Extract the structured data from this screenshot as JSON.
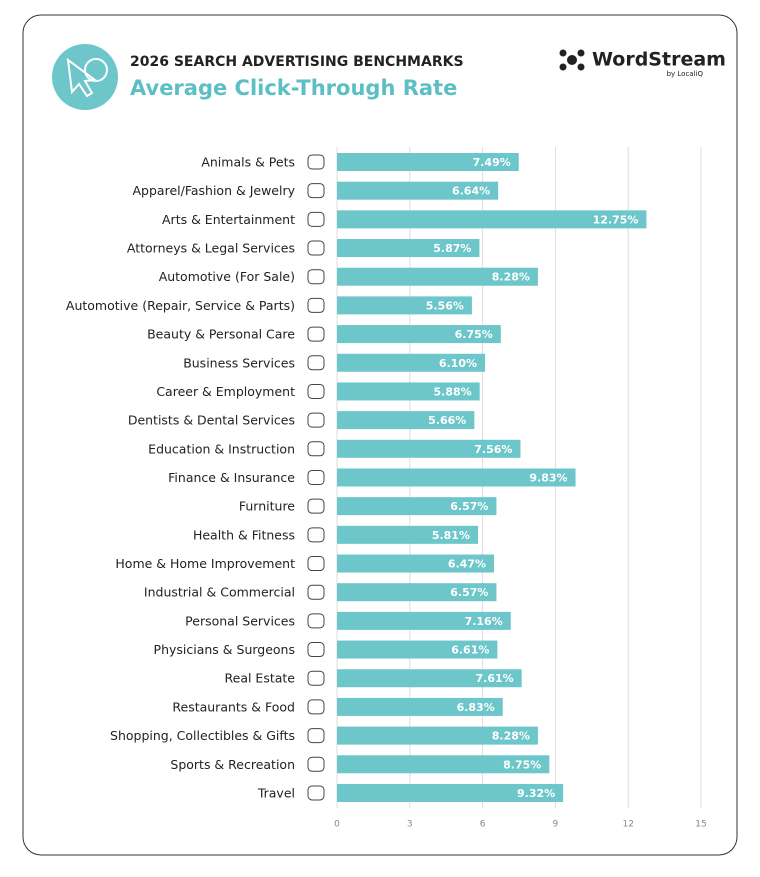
{
  "chart_data": {
    "type": "hbar",
    "supertitle": "2026 SEARCH ADVERTISING BENCHMARKS",
    "title": "Average Click-Through Rate",
    "brand": "WordStream",
    "brand_sub": "by LocaliQ",
    "categories": [
      "Animals & Pets",
      "Apparel/Fashion & Jewelry",
      "Arts & Entertainment",
      "Attorneys & Legal Services",
      "Automotive (For Sale)",
      "Automotive (Repair, Service & Parts)",
      "Beauty & Personal Care",
      "Business Services",
      "Career & Employment",
      "Dentists & Dental Services",
      "Education & Instruction",
      "Finance & Insurance",
      "Furniture",
      "Health & Fitness",
      "Home & Home Improvement",
      "Industrial & Commercial",
      "Personal Services",
      "Physicians & Surgeons",
      "Real Estate",
      "Restaurants & Food",
      "Shopping, Collectibles & Gifts",
      "Sports & Recreation",
      "Travel"
    ],
    "values": [
      7.49,
      6.64,
      12.75,
      5.87,
      8.28,
      5.56,
      6.75,
      6.1,
      5.88,
      5.66,
      7.56,
      9.83,
      6.57,
      5.81,
      6.47,
      6.57,
      7.16,
      6.61,
      7.61,
      6.83,
      8.28,
      8.75,
      9.32
    ],
    "value_labels": [
      "7.49%",
      "6.64%",
      "12.75%",
      "5.87%",
      "8.28%",
      "5.56%",
      "6.75%",
      "6.10%",
      "5.88%",
      "5.66%",
      "7.56%",
      "9.83%",
      "6.57%",
      "5.81%",
      "6.47%",
      "6.57%",
      "7.16%",
      "6.61%",
      "7.61%",
      "6.83%",
      "8.28%",
      "8.75%",
      "9.32%"
    ],
    "color": "#6cc6ca",
    "xlim": [
      0,
      15
    ],
    "xticks": [
      0,
      3,
      6,
      9,
      12,
      15
    ],
    "grid": true
  }
}
